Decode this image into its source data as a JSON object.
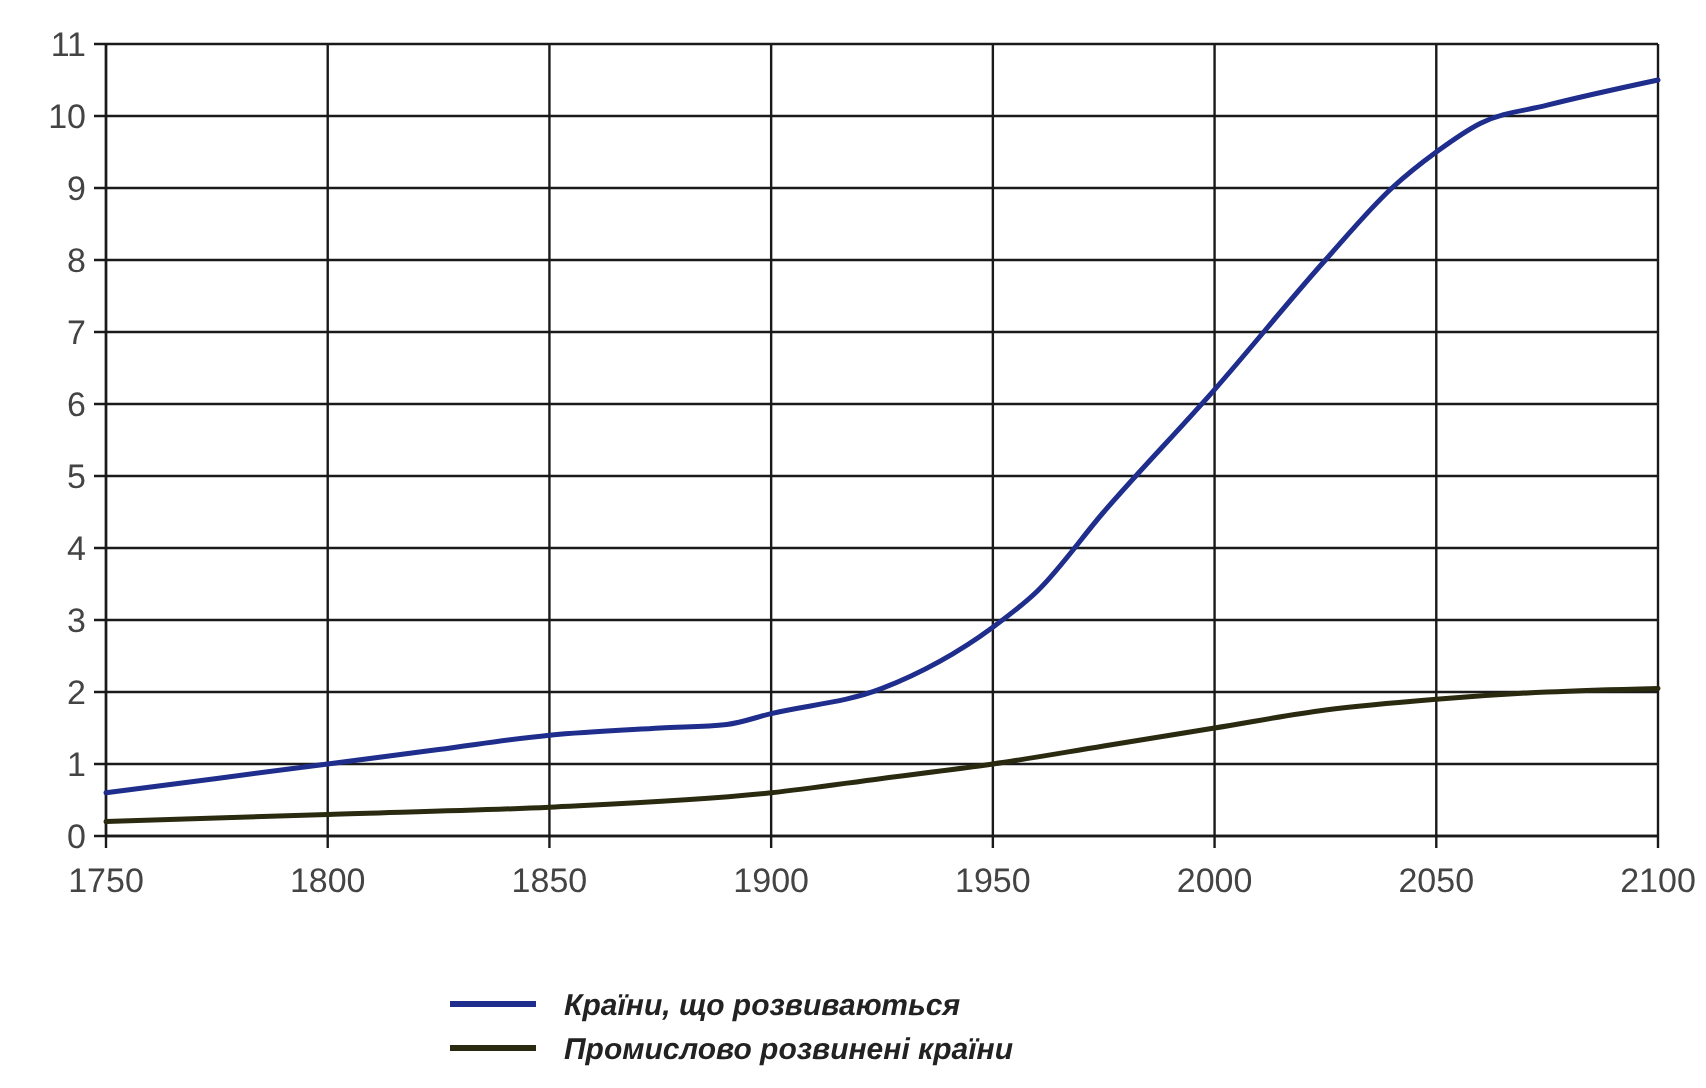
{
  "chart_data": {
    "type": "line",
    "x": [
      1750,
      1775,
      1800,
      1825,
      1850,
      1875,
      1890,
      1900,
      1925,
      1950,
      1960,
      1975,
      2000,
      2025,
      2040,
      2050,
      2060,
      2075,
      2100
    ],
    "series": [
      {
        "name": "Країни, що розвиваються",
        "color": "#1f2e8c",
        "values": [
          0.6,
          0.8,
          1.0,
          1.2,
          1.4,
          1.5,
          1.55,
          1.7,
          2.05,
          2.9,
          3.4,
          4.5,
          6.2,
          8.0,
          9.0,
          9.5,
          9.9,
          10.15,
          10.5
        ]
      },
      {
        "name": "Промислово розвинені країни",
        "color": "#2a2a10",
        "x": [
          1750,
          1800,
          1850,
          1900,
          1925,
          1950,
          1975,
          2000,
          2025,
          2050,
          2075,
          2100
        ],
        "values": [
          0.2,
          0.3,
          0.4,
          0.6,
          0.8,
          1.0,
          1.25,
          1.5,
          1.75,
          1.9,
          2.0,
          2.05
        ]
      }
    ],
    "xlim": [
      1750,
      2100
    ],
    "xticks": [
      1750,
      1800,
      1850,
      1900,
      1950,
      2000,
      2050,
      2100
    ],
    "ylim": [
      0,
      11
    ],
    "yticks": [
      0,
      1,
      2,
      3,
      4,
      5,
      6,
      7,
      8,
      9,
      10,
      11
    ],
    "grid": true,
    "legend": "bottom",
    "marker": "none",
    "line_style": "solid"
  }
}
